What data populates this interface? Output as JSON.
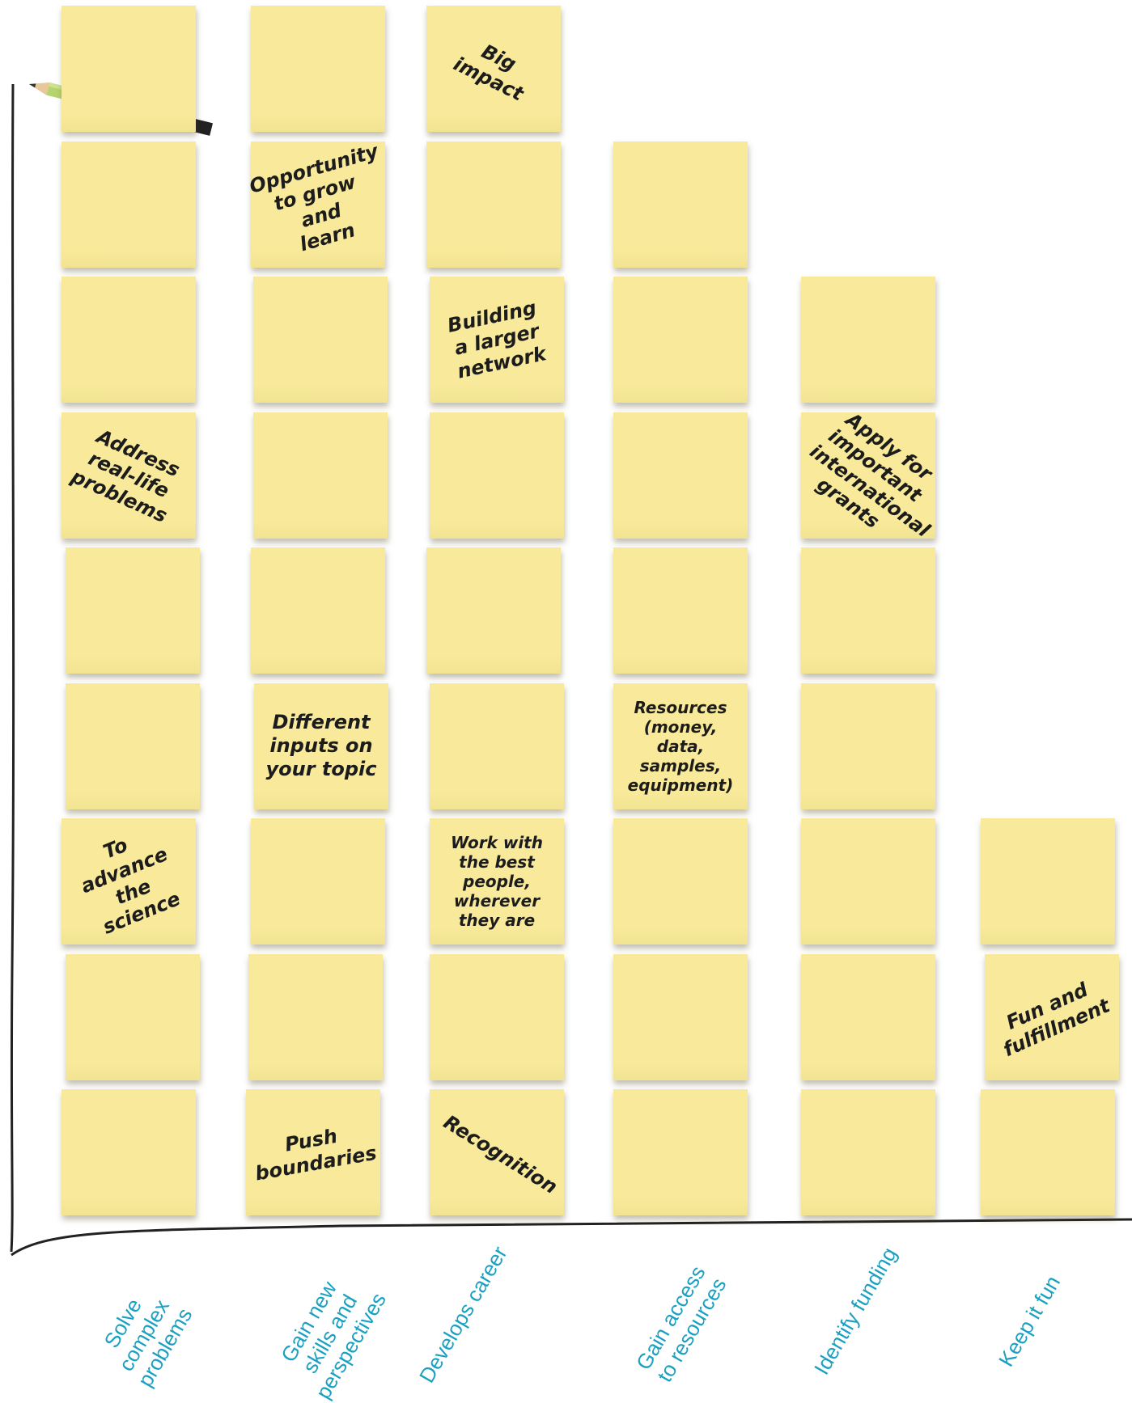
{
  "chart_data": {
    "type": "bar",
    "title": "",
    "xlabel": "",
    "ylabel": "",
    "categories": [
      "Solve\ncomplex\nproblems",
      "Gain new\nskills and\nperspectives",
      "Develops career",
      "Gain access\nto resources",
      "Identify funding",
      "Keep it fun"
    ],
    "values": [
      9,
      9,
      9,
      8,
      7,
      3
    ],
    "ylim": [
      0,
      9
    ],
    "grid": false,
    "legend": "none",
    "note_texts": [
      [
        "",
        "",
        "",
        "Address\nreal-life\nproblems",
        "",
        "",
        "To advance\nthe science",
        "",
        ""
      ],
      [
        "",
        "Opportunity\nto grow and\nlearn",
        "",
        "",
        "",
        "Different\ninputs on\nyour topic",
        "",
        "",
        "Push\nboundaries"
      ],
      [
        "Big\nimpact",
        "",
        "Building\na larger\nnetwork",
        "",
        "",
        "",
        "Work with\nthe best\npeople,\nwherever\nthey are",
        "",
        "Recognition"
      ],
      [
        "",
        "",
        "",
        "",
        "Resources\n(money, data,\nsamples,\nequipment)",
        "",
        "",
        ""
      ],
      [
        "",
        "Apply for\nimportant\ninternational\ngrants",
        "",
        "",
        "",
        "",
        ""
      ],
      [
        "",
        "Fun and\nfulfillment",
        ""
      ]
    ]
  },
  "colors": {
    "note": "#f8ea9a",
    "note_text": "#1c1c1c",
    "label": "#1aa0c0",
    "axis": "#222222"
  },
  "icons": {
    "pencil": "pencil-icon"
  }
}
